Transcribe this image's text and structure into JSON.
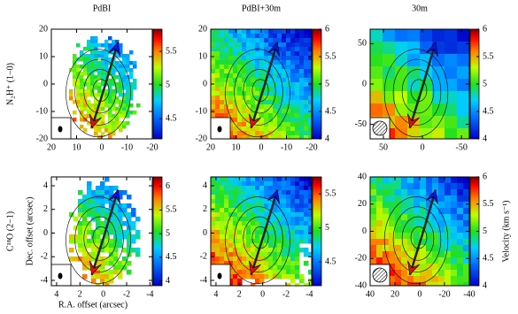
{
  "chart_data": [
    {
      "type": "map",
      "title": "PdBI",
      "row_label": "N₂H⁺ (1−0)",
      "xlim": [
        20,
        -20
      ],
      "ylim": [
        -20,
        20
      ],
      "xticks": [
        20,
        10,
        0,
        -10,
        -20
      ],
      "yticks": [
        -20,
        -10,
        0,
        10,
        20
      ],
      "clim": [
        4.2,
        5.83
      ],
      "cticks": [
        4.5,
        5,
        5.5
      ]
    },
    {
      "type": "map",
      "title": "PdBI+30m",
      "xlim": [
        20,
        -20
      ],
      "ylim": [
        -20,
        20
      ],
      "xticks": [
        20,
        10,
        0,
        -10,
        -20
      ],
      "yticks": [
        -20,
        -10,
        0,
        10,
        20
      ],
      "clim": [
        4,
        6
      ],
      "cticks": [
        4,
        4.5,
        5,
        5.5,
        6
      ]
    },
    {
      "type": "map",
      "title": "30m",
      "xlim": [
        67,
        -60
      ],
      "ylim": [
        -68,
        68
      ],
      "xticks": [
        50,
        0,
        -50
      ],
      "yticks": [
        -50,
        0,
        50
      ],
      "clim": [
        4,
        6
      ],
      "cticks": [
        4,
        4.5,
        5,
        5.5,
        6
      ]
    },
    {
      "type": "map",
      "row_label": "C¹⁸O (2−1)",
      "ylabel": "Dec. offset (arcsec)",
      "xlabel": "R.A. offset (arcsec)",
      "xlim": [
        4.45,
        -4.2
      ],
      "ylim": [
        -4.45,
        4.75
      ],
      "xticks": [
        4,
        2,
        0,
        -2,
        -4
      ],
      "yticks": [
        -4,
        -2,
        0,
        2,
        4
      ],
      "clim": [
        3.9,
        6.2
      ],
      "cticks": [
        4,
        4.5,
        5,
        5.5,
        6
      ]
    },
    {
      "type": "map",
      "xlim": [
        4.45,
        -4.2
      ],
      "ylim": [
        -4.45,
        4.75
      ],
      "xticks": [
        4,
        2,
        0,
        -2,
        -4
      ],
      "yticks": [
        -4,
        -2,
        0,
        2,
        4
      ],
      "clim": [
        4.15,
        5.75
      ],
      "cticks": [
        4.5,
        5,
        5.5
      ]
    },
    {
      "type": "map",
      "colorbar_label": "Velocity (km s⁻¹)",
      "xlim": [
        40,
        -40
      ],
      "ylim": [
        -40,
        40
      ],
      "xticks": [
        40,
        20,
        0,
        -20,
        -40
      ],
      "yticks": [
        -40,
        -20,
        0,
        20,
        40
      ],
      "clim": [
        4,
        6
      ],
      "cticks": [
        4,
        4.5,
        5,
        5.5,
        6
      ]
    }
  ]
}
